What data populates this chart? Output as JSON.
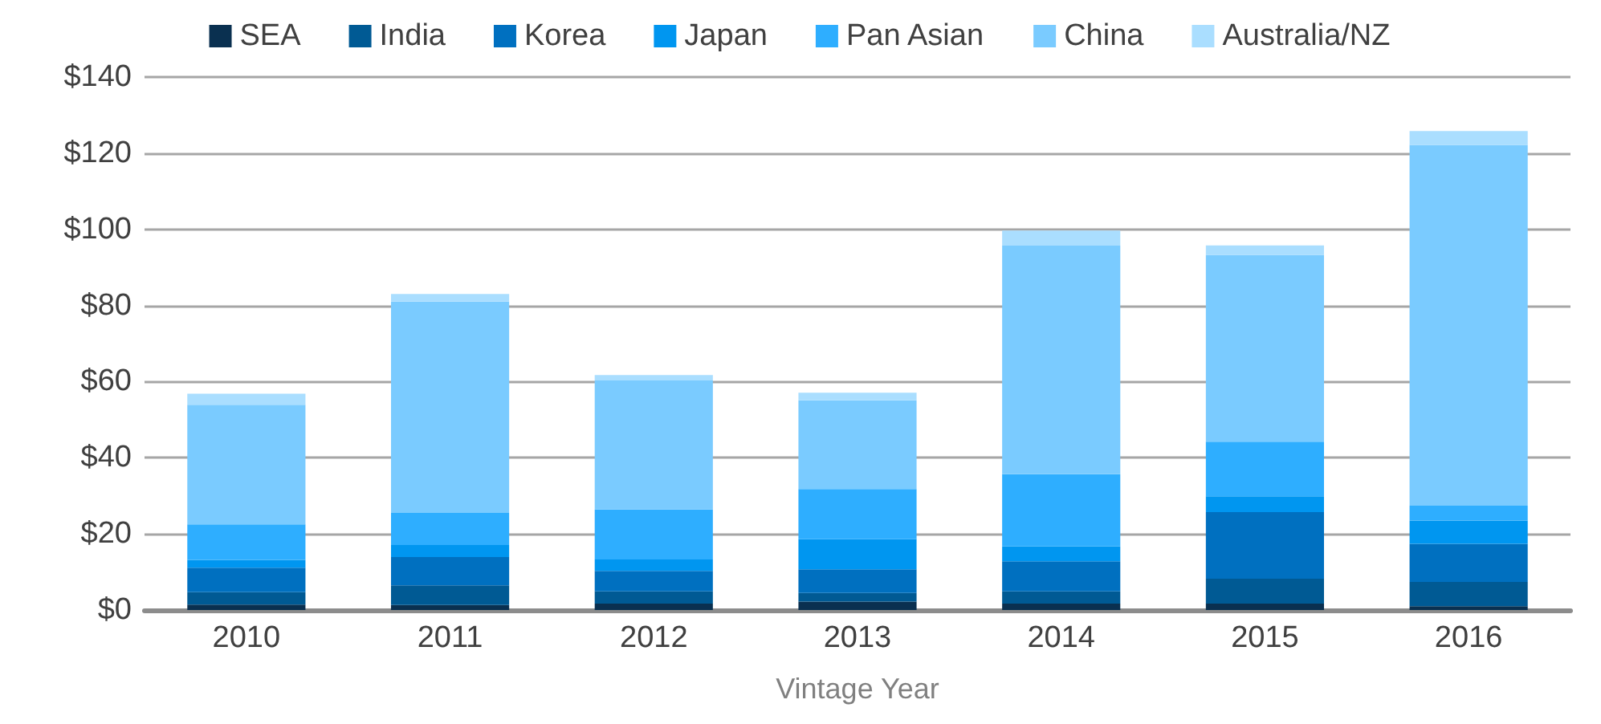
{
  "chart_data": {
    "type": "bar",
    "stacked": true,
    "xlabel": "Vintage Year",
    "categories": [
      "2010",
      "2011",
      "2012",
      "2013",
      "2014",
      "2015",
      "2016"
    ],
    "series": [
      {
        "name": "SEA",
        "color": "#0a3050",
        "values": [
          1.4,
          1.3,
          1.7,
          2.2,
          1.7,
          1.7,
          1.0
        ]
      },
      {
        "name": "India",
        "color": "#005a94",
        "values": [
          3.3,
          5.2,
          3.2,
          2.3,
          3.2,
          6.5,
          6.4
        ]
      },
      {
        "name": "Korea",
        "color": "#0070c0",
        "values": [
          6.4,
          7.4,
          5.4,
          6.2,
          7.9,
          17.5,
          10.0
        ]
      },
      {
        "name": "Japan",
        "color": "#0096f0",
        "values": [
          2.1,
          3.2,
          3.0,
          7.9,
          3.9,
          4.2,
          6.1
        ]
      },
      {
        "name": "Pan Asian",
        "color": "#2eaeff",
        "values": [
          9.3,
          8.4,
          13.1,
          13.2,
          19.0,
          14.3,
          3.9
        ]
      },
      {
        "name": "China",
        "color": "#7acbff",
        "values": [
          31.4,
          55.5,
          33.9,
          23.3,
          60.0,
          49.1,
          94.8
        ]
      },
      {
        "name": "Australia/NZ",
        "color": "#aadeff",
        "values": [
          2.9,
          2.0,
          1.4,
          2.0,
          4.0,
          2.5,
          3.6
        ]
      }
    ],
    "ylim": [
      0,
      140
    ],
    "yticks": [
      {
        "value": 0,
        "label": "$0"
      },
      {
        "value": 20,
        "label": "$20"
      },
      {
        "value": 40,
        "label": "$40"
      },
      {
        "value": 60,
        "label": "$60"
      },
      {
        "value": 80,
        "label": "$80"
      },
      {
        "value": 100,
        "label": "$100"
      },
      {
        "value": 120,
        "label": "$120"
      },
      {
        "value": 140,
        "label": "$140"
      }
    ],
    "grid": "y",
    "legend": "top"
  }
}
